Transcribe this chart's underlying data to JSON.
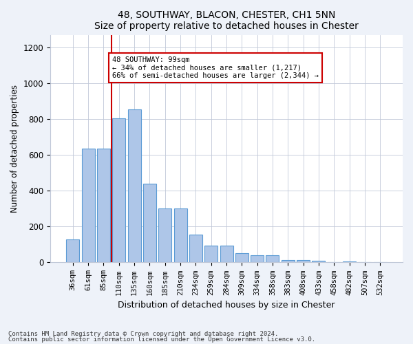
{
  "title1": "48, SOUTHWAY, BLACON, CHESTER, CH1 5NN",
  "title2": "Size of property relative to detached houses in Chester",
  "xlabel": "Distribution of detached houses by size in Chester",
  "ylabel": "Number of detached properties",
  "categories": [
    "36sqm",
    "61sqm",
    "85sqm",
    "110sqm",
    "135sqm",
    "160sqm",
    "185sqm",
    "210sqm",
    "234sqm",
    "259sqm",
    "284sqm",
    "309sqm",
    "334sqm",
    "358sqm",
    "383sqm",
    "408sqm",
    "433sqm",
    "458sqm",
    "482sqm",
    "507sqm",
    "532sqm"
  ],
  "values": [
    130,
    635,
    635,
    805,
    855,
    440,
    300,
    300,
    155,
    95,
    95,
    50,
    40,
    40,
    15,
    15,
    10,
    2,
    5,
    2,
    2
  ],
  "bar_color": "#aec6e8",
  "bar_edgecolor": "#5b9bd5",
  "bar_linewidth": 0.8,
  "red_line_x": 2.5,
  "red_line_color": "#cc0000",
  "annotation_text": "48 SOUTHWAY: 99sqm\n← 34% of detached houses are smaller (1,217)\n66% of semi-detached houses are larger (2,344) →",
  "annotation_box_color": "#ffffff",
  "annotation_box_edgecolor": "#cc0000",
  "ylim": [
    0,
    1270
  ],
  "yticks": [
    0,
    200,
    400,
    600,
    800,
    1000,
    1200
  ],
  "footnote1": "Contains HM Land Registry data © Crown copyright and database right 2024.",
  "footnote2": "Contains public sector information licensed under the Open Government Licence v3.0.",
  "bg_color": "#eef2f9",
  "plot_bg_color": "#ffffff"
}
